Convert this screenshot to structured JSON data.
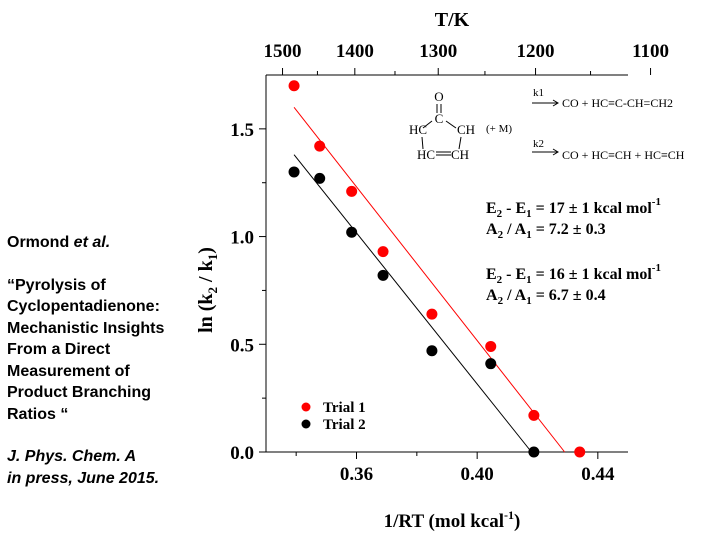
{
  "citation": {
    "author": "Ormond",
    "author_suffix": "et al.",
    "title_lines": [
      "“Pyrolysis of",
      "Cyclopentadienone:",
      "Mechanistic Insights",
      "From a Direct",
      "Measurement of",
      "Product Branching",
      "Ratios “"
    ],
    "journal": "J. Phys. Chem. A",
    "status": "in press, June 2015."
  },
  "chart_data": {
    "type": "scatter",
    "xlabel": "1/RT (mol kcal-1)",
    "ylabel": "ln (k2 / k1)",
    "top_axis_label": "T/K",
    "xlim": [
      0.33,
      0.45
    ],
    "ylim": [
      0.0,
      1.75
    ],
    "x_ticks": [
      0.36,
      0.4,
      0.44
    ],
    "x_tick_labels": [
      "0.36",
      "0.40",
      "0.44"
    ],
    "y_ticks": [
      0.0,
      0.5,
      1.0,
      1.5
    ],
    "y_tick_labels": [
      "0.0",
      "0.5",
      "1.0",
      "1.5"
    ],
    "top_ticks_K": [
      1500,
      1400,
      1300,
      1200,
      1100
    ],
    "top_tick_labels": [
      "1500",
      "1400",
      "1300",
      "1200",
      "1100"
    ],
    "series": [
      {
        "name": "Trial 1",
        "color": "#ff0000",
        "x": [
          0.3393,
          0.3478,
          0.3584,
          0.3688,
          0.385,
          0.4045,
          0.4188,
          0.434
        ],
        "y": [
          1.7,
          1.42,
          1.21,
          0.93,
          0.64,
          0.49,
          0.17,
          0.0
        ],
        "fit": {
          "x": [
            0.3393,
            0.429
          ],
          "y": [
            1.6,
            0.0
          ]
        },
        "annotation": {
          "dE": "E2 - E1 = 17 ± 1 kcal mol-1",
          "ratio": "A2 / A1 = 7.2 ± 0.3"
        }
      },
      {
        "name": "Trial 2",
        "color": "#000000",
        "x": [
          0.3393,
          0.3478,
          0.3584,
          0.3688,
          0.385,
          0.4045,
          0.4188
        ],
        "y": [
          1.3,
          1.27,
          1.02,
          0.82,
          0.47,
          0.41,
          0.0
        ],
        "fit": {
          "x": [
            0.3393,
            0.418
          ],
          "y": [
            1.38,
            0.0
          ]
        },
        "annotation": {
          "dE": "E2 - E1 = 16 ± 1 kcal mol-1",
          "ratio": "A2 / A1 = 6.7 ± 0.4"
        }
      }
    ],
    "legend": {
      "placement": "bottom-left",
      "entries": [
        "Trial 1",
        "Trial 2"
      ]
    },
    "scheme": {
      "molecule": {
        "top": "O",
        "c1": "C",
        "left": "HC",
        "right": "CH",
        "bl": "HC",
        "br": "CH",
        "third_body": "(+ M)"
      },
      "k1": "k1",
      "product1": "CO + HC≡C-CH=CH2",
      "k2": "k2",
      "product2": "CO + HC≡CH + HC≡CH"
    }
  }
}
